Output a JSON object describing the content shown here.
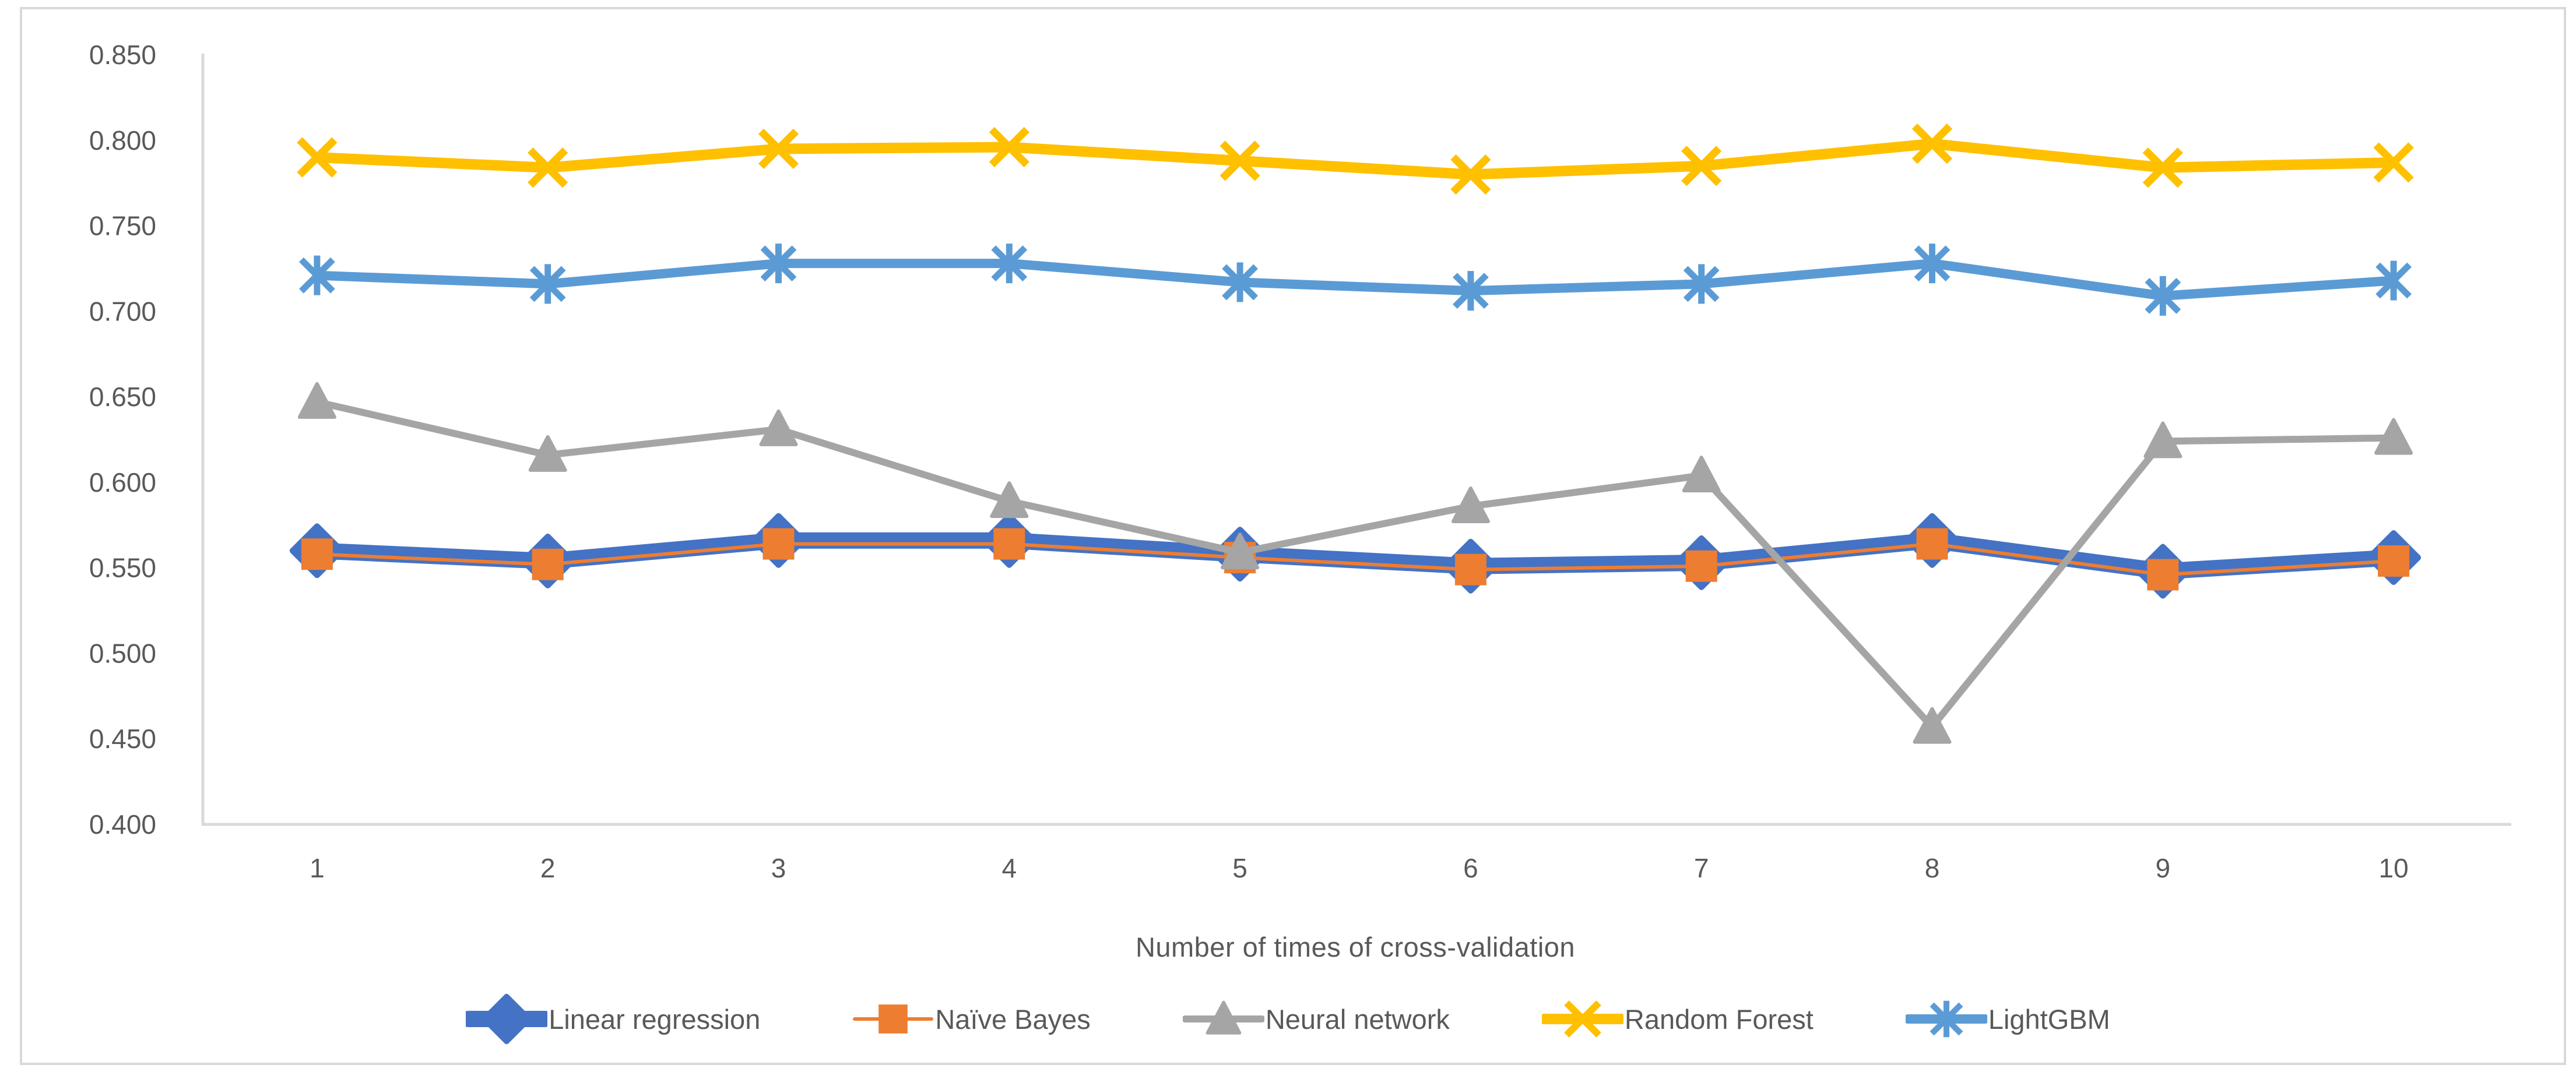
{
  "chart_data": {
    "type": "line",
    "title": "",
    "xlabel": "Number of times of cross-validation",
    "ylabel": "",
    "x": [
      1,
      2,
      3,
      4,
      5,
      6,
      7,
      8,
      9,
      10
    ],
    "xtick_labels": [
      "1",
      "2",
      "3",
      "4",
      "5",
      "6",
      "7",
      "8",
      "9",
      "10"
    ],
    "ylim": [
      0.4,
      0.85
    ],
    "ytick_step": 0.05,
    "ytick_labels": [
      "0.850",
      "0.800",
      "0.750",
      "0.700",
      "0.650",
      "0.600",
      "0.550",
      "0.500",
      "0.450",
      "0.400"
    ],
    "grid": false,
    "legend_position": "bottom",
    "series": [
      {
        "name": "Linear regression",
        "color": "#4472C4",
        "marker": "diamond",
        "line_width": 28,
        "values": [
          0.56,
          0.554,
          0.566,
          0.566,
          0.558,
          0.551,
          0.553,
          0.566,
          0.548,
          0.556
        ]
      },
      {
        "name": "Naïve Bayes",
        "color": "#ED7D31",
        "marker": "square",
        "line_width": 6,
        "values": [
          0.558,
          0.552,
          0.564,
          0.564,
          0.556,
          0.549,
          0.551,
          0.564,
          0.546,
          0.554
        ]
      },
      {
        "name": "Neural network",
        "color": "#A5A5A5",
        "marker": "triangle",
        "line_width": 12,
        "values": [
          0.647,
          0.616,
          0.631,
          0.589,
          0.559,
          0.586,
          0.604,
          0.457,
          0.624,
          0.626
        ]
      },
      {
        "name": "Random Forest",
        "color": "#FFC000",
        "marker": "x",
        "line_width": 18,
        "values": [
          0.79,
          0.784,
          0.795,
          0.796,
          0.788,
          0.78,
          0.785,
          0.798,
          0.784,
          0.787
        ]
      },
      {
        "name": "LightGBM",
        "color": "#5B9BD5",
        "marker": "asterisk",
        "line_width": 16,
        "values": [
          0.721,
          0.716,
          0.728,
          0.728,
          0.717,
          0.712,
          0.716,
          0.728,
          0.709,
          0.718
        ]
      }
    ]
  },
  "style": {
    "axis_line_color": "#D9D9D9",
    "border_color": "#D9D9D9",
    "text_color": "#595959"
  }
}
